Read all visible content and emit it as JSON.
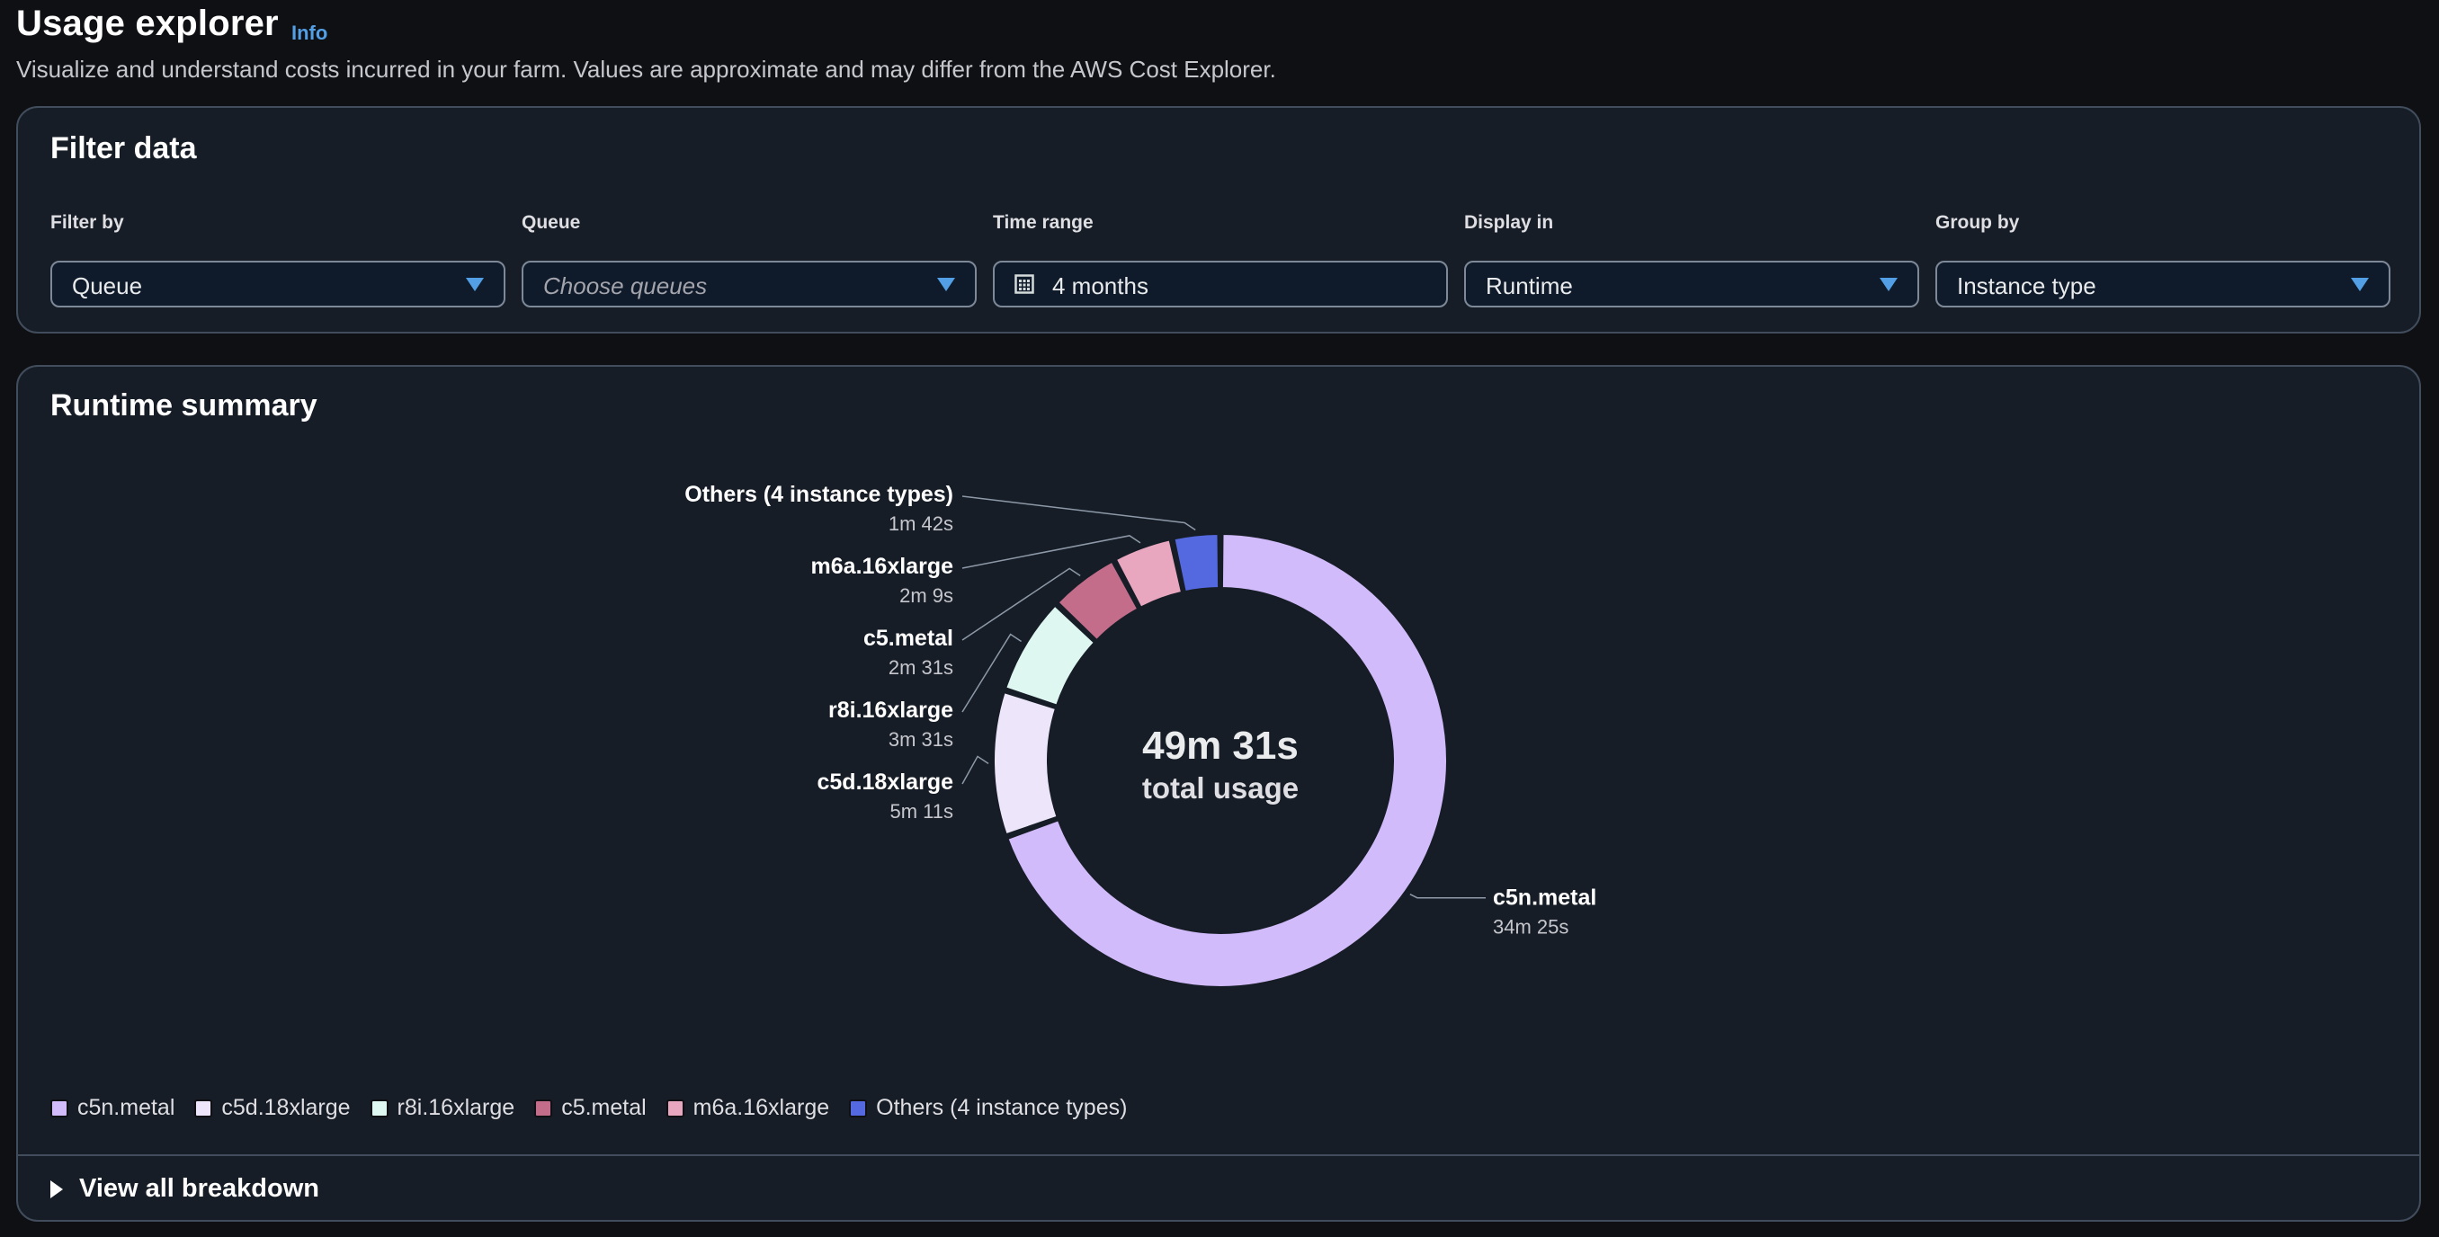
{
  "header": {
    "title": "Usage explorer",
    "info_label": "Info",
    "description": "Visualize and understand costs incurred in your farm. Values are approximate and may differ from the AWS Cost Explorer."
  },
  "filter_panel": {
    "title": "Filter data",
    "fields": [
      {
        "label": "Filter by",
        "value": "Queue",
        "placeholder": false
      },
      {
        "label": "Queue",
        "value": "Choose queues",
        "placeholder": true
      },
      {
        "label": "Time range",
        "value": "4 months",
        "placeholder": false,
        "icon": "calendar-icon"
      },
      {
        "label": "Display in",
        "value": "Runtime",
        "placeholder": false
      },
      {
        "label": "Group by",
        "value": "Instance type",
        "placeholder": false
      }
    ]
  },
  "summary_panel": {
    "title": "Runtime summary",
    "center_value": "49m 31s",
    "center_label": "total usage",
    "view_all_label": "View all breakdown"
  },
  "colors": {
    "accent": "#539fe5",
    "c5n_metal": "#d1bbfa",
    "c5d_18xlarge": "#ede6fb",
    "r8i_16xlarge": "#dff7f1",
    "c5_metal": "#c46d8a",
    "m6a_16xlarge": "#e9a7bf",
    "others": "#5469e0"
  },
  "chart_data": {
    "type": "pie",
    "variant": "donut",
    "title": "Runtime summary",
    "center_text": [
      "49m 31s",
      "total usage"
    ],
    "unit": "seconds",
    "slices": [
      {
        "name": "c5n.metal",
        "value": 2065,
        "label": "34m 25s",
        "color": "#d1bbfa"
      },
      {
        "name": "c5d.18xlarge",
        "value": 311,
        "label": "5m 11s",
        "color": "#ede6fb"
      },
      {
        "name": "r8i.16xlarge",
        "value": 211,
        "label": "3m 31s",
        "color": "#dff7f1"
      },
      {
        "name": "c5.metal",
        "value": 151,
        "label": "2m 31s",
        "color": "#c46d8a"
      },
      {
        "name": "m6a.16xlarge",
        "value": 129,
        "label": "2m 9s",
        "color": "#e9a7bf"
      },
      {
        "name": "Others (4 instance types)",
        "value": 102,
        "label": "1m 42s",
        "color": "#5469e0"
      }
    ],
    "legend": [
      "c5n.metal",
      "c5d.18xlarge",
      "r8i.16xlarge",
      "c5.metal",
      "m6a.16xlarge",
      "Others (4 instance types)"
    ],
    "legend_position": "bottom-left"
  }
}
